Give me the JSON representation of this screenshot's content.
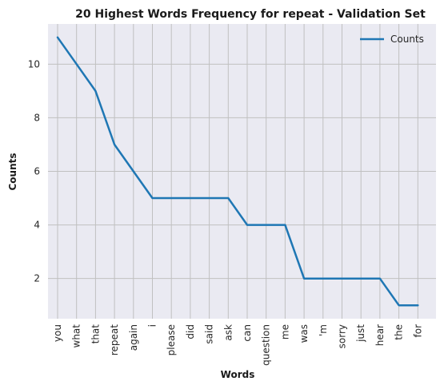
{
  "chart_data": {
    "type": "line",
    "title": "20 Highest Words Frequency for repeat - Validation Set",
    "xlabel": "Words",
    "ylabel": "Counts",
    "categories": [
      "you",
      "what",
      "that",
      "repeat",
      "again",
      "i",
      "please",
      "did",
      "said",
      "ask",
      "can",
      "question",
      "me",
      "was",
      "'m",
      "sorry",
      "just",
      "hear",
      "the",
      "for"
    ],
    "series": [
      {
        "name": "Counts",
        "values": [
          11,
          10,
          9,
          7,
          6,
          5,
          5,
          5,
          5,
          5,
          4,
          4,
          4,
          2,
          2,
          2,
          2,
          2,
          1,
          1
        ],
        "color": "#1f77b4"
      }
    ],
    "yticks": [
      2,
      4,
      6,
      8,
      10
    ],
    "ylim": [
      0.5,
      11.5
    ],
    "grid": true,
    "legend_position": "top-right",
    "plot_background": "#eaeaf2",
    "grid_color": "#c0c0c0"
  }
}
